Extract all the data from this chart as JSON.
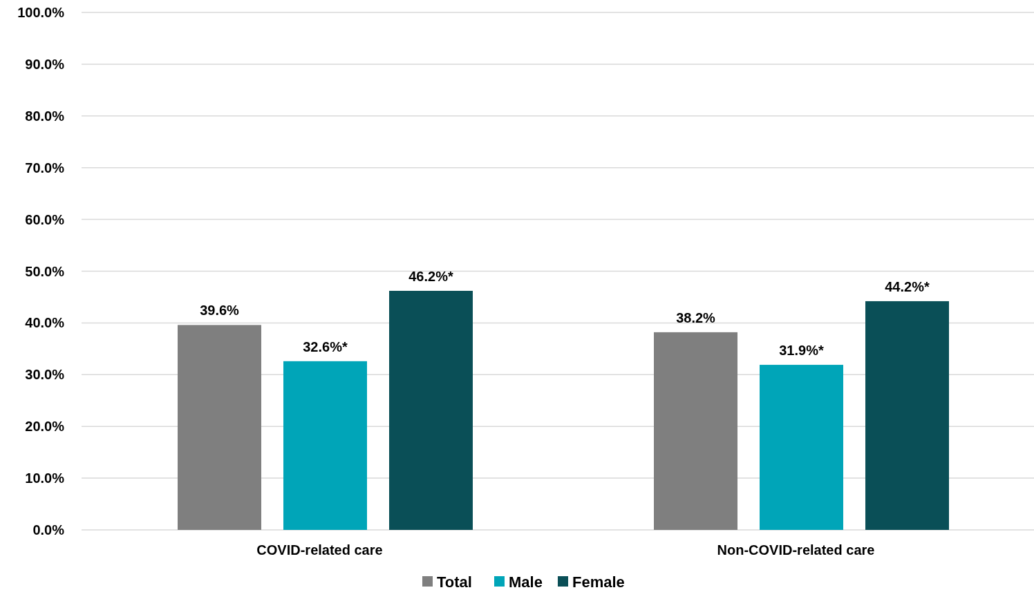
{
  "chart_data": {
    "type": "bar",
    "categories": [
      "COVID-related care",
      "Non-COVID-related care"
    ],
    "series": [
      {
        "name": "Total",
        "color": "#7f7f7f",
        "values": [
          39.6,
          38.2
        ],
        "value_labels": [
          "39.6%",
          "38.2%"
        ]
      },
      {
        "name": "Male",
        "color": "#00a5b8",
        "values": [
          32.6,
          31.9
        ],
        "value_labels": [
          "32.6%*",
          "31.9%*"
        ]
      },
      {
        "name": "Female",
        "color": "#0a4f57",
        "values": [
          46.2,
          44.2
        ],
        "value_labels": [
          "46.2%*",
          "44.2%*"
        ]
      }
    ],
    "ylim": [
      0,
      100
    ],
    "yticks": [
      {
        "value": 0,
        "label": "0.0%"
      },
      {
        "value": 10,
        "label": "10.0%"
      },
      {
        "value": 20,
        "label": "20.0%"
      },
      {
        "value": 30,
        "label": "30.0%"
      },
      {
        "value": 40,
        "label": "40.0%"
      },
      {
        "value": 50,
        "label": "50.0%"
      },
      {
        "value": 60,
        "label": "60.0%"
      },
      {
        "value": 70,
        "label": "70.0%"
      },
      {
        "value": 80,
        "label": "80.0%"
      },
      {
        "value": 90,
        "label": "90.0%"
      },
      {
        "value": 100,
        "label": "100.0%"
      }
    ],
    "grid": "y",
    "legend": "bottom"
  }
}
